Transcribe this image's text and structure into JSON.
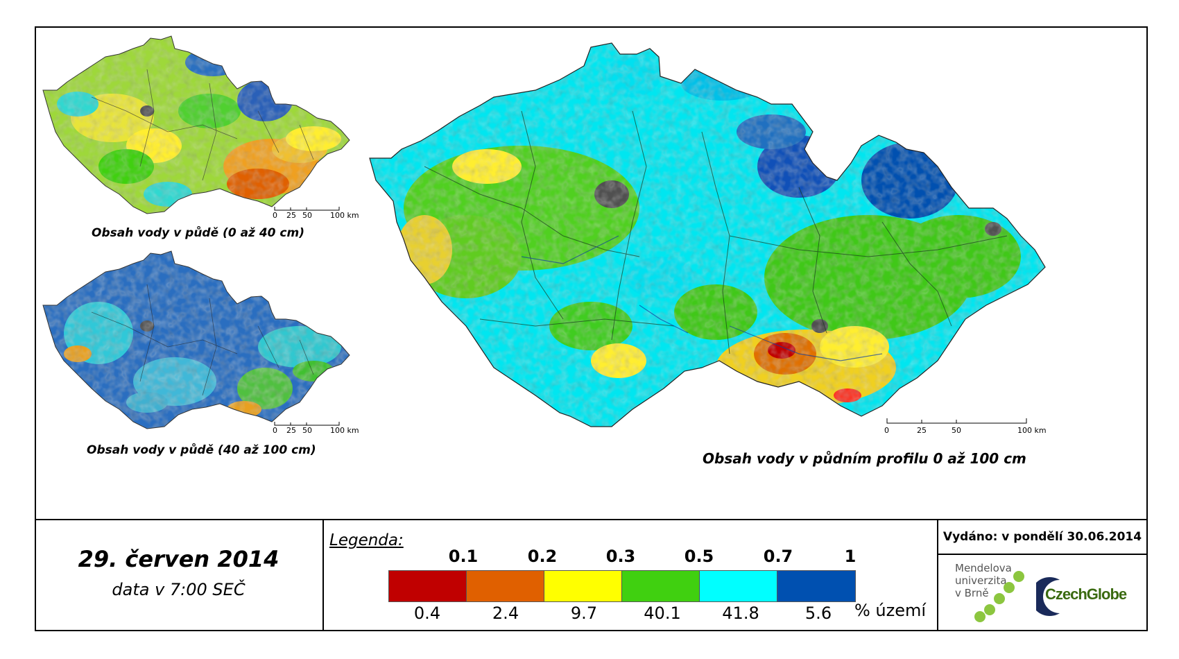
{
  "maps": {
    "small_top": {
      "caption": "Obsah vody v půdě (0 až 40 cm)",
      "scale": [
        "0",
        "25",
        "50",
        "100 km"
      ]
    },
    "small_bottom": {
      "caption": "Obsah vody v půdě (40 až 100 cm)",
      "scale": [
        "0",
        "25",
        "50",
        "100 km"
      ]
    },
    "main": {
      "caption": "Obsah vody v půdním profilu 0 až 100 cm",
      "scale": [
        "0",
        "25",
        "50",
        "100 km"
      ]
    }
  },
  "date": {
    "title": "29. červen 2014",
    "subtitle": "data v 7:00 SEČ"
  },
  "legend": {
    "title": "Legenda:",
    "thresholds": [
      "0.1",
      "0.2",
      "0.3",
      "0.5",
      "0.7",
      "1"
    ],
    "classes": [
      {
        "color": "#c00000",
        "percent": "0.4"
      },
      {
        "color": "#e06000",
        "percent": "2.4"
      },
      {
        "color": "#ffff00",
        "percent": "9.7"
      },
      {
        "color": "#40d010",
        "percent": "40.1"
      },
      {
        "color": "#00ffff",
        "percent": "41.8"
      },
      {
        "color": "#0050b0",
        "percent": "5.6"
      }
    ],
    "unit": "% území"
  },
  "issued": "Vydáno: v pondělí 30.06.2014",
  "logos": {
    "mendel": [
      "Mendelova",
      "univerzita",
      "v Brně"
    ],
    "czechglobe": "CzechGlobe"
  }
}
